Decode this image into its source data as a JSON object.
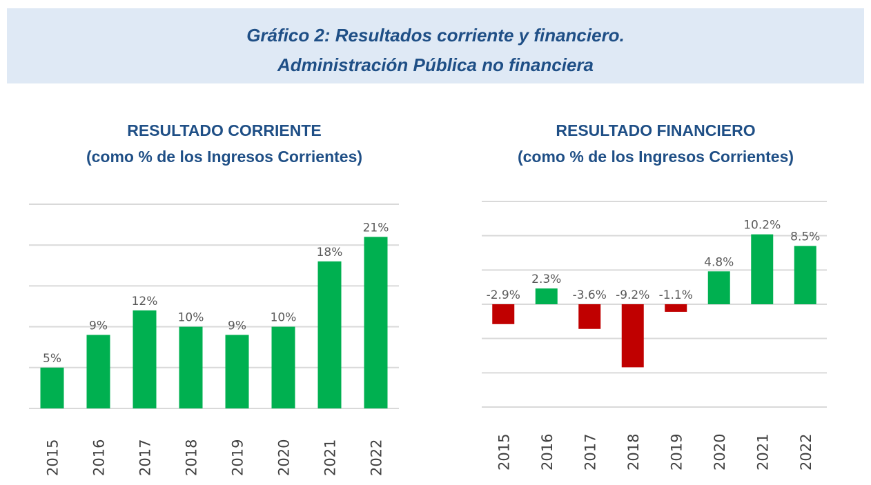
{
  "figure": {
    "title_line1": "Gráfico 2: Resultados corriente y financiero.",
    "title_line2": "Administración Pública no financiera"
  },
  "colors": {
    "positive": "#00b050",
    "negative": "#c00000",
    "title": "#1f4f86",
    "banner_bg": "#dfe9f5"
  },
  "chart_data": [
    {
      "type": "bar",
      "title": "RESULTADO CORRIENTE",
      "subtitle": "(como % de los Ingresos Corrientes)",
      "categories": [
        "2015",
        "2016",
        "2017",
        "2018",
        "2019",
        "2020",
        "2021",
        "2022"
      ],
      "values": [
        5,
        9,
        12,
        10,
        9,
        10,
        18,
        21
      ],
      "data_labels": [
        "5%",
        "9%",
        "12%",
        "10%",
        "9%",
        "10%",
        "18%",
        "21%"
      ],
      "ylim": [
        0,
        25
      ],
      "grid": true,
      "xlabel": "",
      "ylabel": ""
    },
    {
      "type": "bar",
      "title": "RESULTADO FINANCIERO",
      "subtitle": "(como % de los Ingresos Corrientes)",
      "categories": [
        "2015",
        "2016",
        "2017",
        "2018",
        "2019",
        "2020",
        "2021",
        "2022"
      ],
      "values": [
        -2.9,
        2.3,
        -3.6,
        -9.2,
        -1.1,
        4.8,
        10.2,
        8.5
      ],
      "data_labels": [
        "-2.9%",
        "2.3%",
        "-3.6%",
        "-9.2%",
        "-1.1%",
        "4.8%",
        "10.2%",
        "8.5%"
      ],
      "ylim": [
        -15,
        15
      ],
      "grid": true,
      "xlabel": "",
      "ylabel": ""
    }
  ]
}
